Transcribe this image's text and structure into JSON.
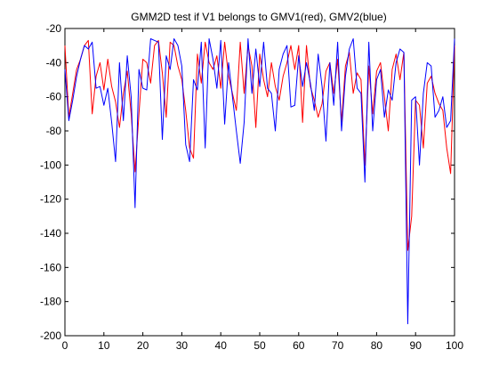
{
  "chart_data": {
    "type": "line",
    "title": "GMM2D test if V1 belongs to GMV1(red), GMV2(blue)",
    "xlabel": "",
    "ylabel": "",
    "xlim": [
      0,
      100
    ],
    "ylim": [
      -200,
      -20
    ],
    "xticks": [
      "0",
      "10",
      "20",
      "30",
      "40",
      "50",
      "60",
      "70",
      "80",
      "90",
      "100"
    ],
    "yticks": [
      "-200",
      "-180",
      "-160",
      "-140",
      "-120",
      "-100",
      "-80",
      "-60",
      "-40",
      "-20"
    ],
    "grid": false,
    "legend": "none",
    "x": [
      0,
      1,
      2,
      3,
      4,
      5,
      6,
      7,
      8,
      9,
      10,
      11,
      12,
      13,
      14,
      15,
      16,
      17,
      18,
      19,
      20,
      21,
      22,
      23,
      24,
      25,
      26,
      27,
      28,
      29,
      30,
      31,
      32,
      33,
      34,
      35,
      36,
      37,
      38,
      39,
      40,
      41,
      42,
      43,
      44,
      45,
      46,
      47,
      48,
      49,
      50,
      51,
      52,
      53,
      54,
      55,
      56,
      57,
      58,
      59,
      60,
      61,
      62,
      63,
      64,
      65,
      66,
      67,
      68,
      69,
      70,
      71,
      72,
      73,
      74,
      75,
      76,
      77,
      78,
      79,
      80,
      81,
      82,
      83,
      84,
      85,
      86,
      87,
      88,
      89,
      90,
      91,
      92,
      93,
      94,
      95,
      96,
      97,
      98,
      99,
      100
    ],
    "series": [
      {
        "color": "#ff0000",
        "values": [
          -30,
          -72,
          -58,
          -44,
          -38,
          -30,
          -27,
          -70,
          -48,
          -40,
          -56,
          -38,
          -54,
          -63,
          -78,
          -58,
          -45,
          -70,
          -104,
          -70,
          -38,
          -40,
          -52,
          -30,
          -27,
          -46,
          -72,
          -28,
          -30,
          -42,
          -50,
          -68,
          -90,
          -96,
          -35,
          -52,
          -28,
          -40,
          -44,
          -36,
          -55,
          -28,
          -48,
          -58,
          -68,
          -28,
          -58,
          -30,
          -42,
          -78,
          -35,
          -50,
          -60,
          -40,
          -54,
          -62,
          -48,
          -40,
          -30,
          -44,
          -30,
          -75,
          -30,
          -54,
          -62,
          -72,
          -64,
          -45,
          -40,
          -58,
          -38,
          -75,
          -42,
          -34,
          -58,
          -46,
          -50,
          -100,
          -42,
          -70,
          -45,
          -40,
          -60,
          -80,
          -44,
          -35,
          -50,
          -34,
          -150,
          -130,
          -62,
          -65,
          -90,
          -52,
          -48,
          -58,
          -64,
          -68,
          -90,
          -105,
          -30
        ]
      },
      {
        "color": "#0000ff",
        "values": [
          -44,
          -74,
          -62,
          -48,
          -38,
          -30,
          -32,
          -28,
          -55,
          -54,
          -65,
          -55,
          -75,
          -98,
          -40,
          -74,
          -36,
          -60,
          -125,
          -44,
          -55,
          -56,
          -26,
          -27,
          -28,
          -85,
          -36,
          -44,
          -26,
          -30,
          -42,
          -88,
          -98,
          -50,
          -56,
          -28,
          -90,
          -26,
          -38,
          -55,
          -27,
          -76,
          -40,
          -60,
          -80,
          -99,
          -75,
          -26,
          -58,
          -32,
          -54,
          -28,
          -55,
          -58,
          -80,
          -44,
          -35,
          -30,
          -66,
          -65,
          -36,
          -54,
          -40,
          -52,
          -68,
          -35,
          -54,
          -86,
          -40,
          -65,
          -28,
          -80,
          -48,
          -32,
          -26,
          -55,
          -58,
          -110,
          -28,
          -80,
          -50,
          -44,
          -72,
          -56,
          -62,
          -40,
          -32,
          -34,
          -193,
          -62,
          -60,
          -100,
          -58,
          -40,
          -42,
          -72,
          -68,
          -60,
          -78,
          -74,
          -26
        ]
      }
    ]
  }
}
